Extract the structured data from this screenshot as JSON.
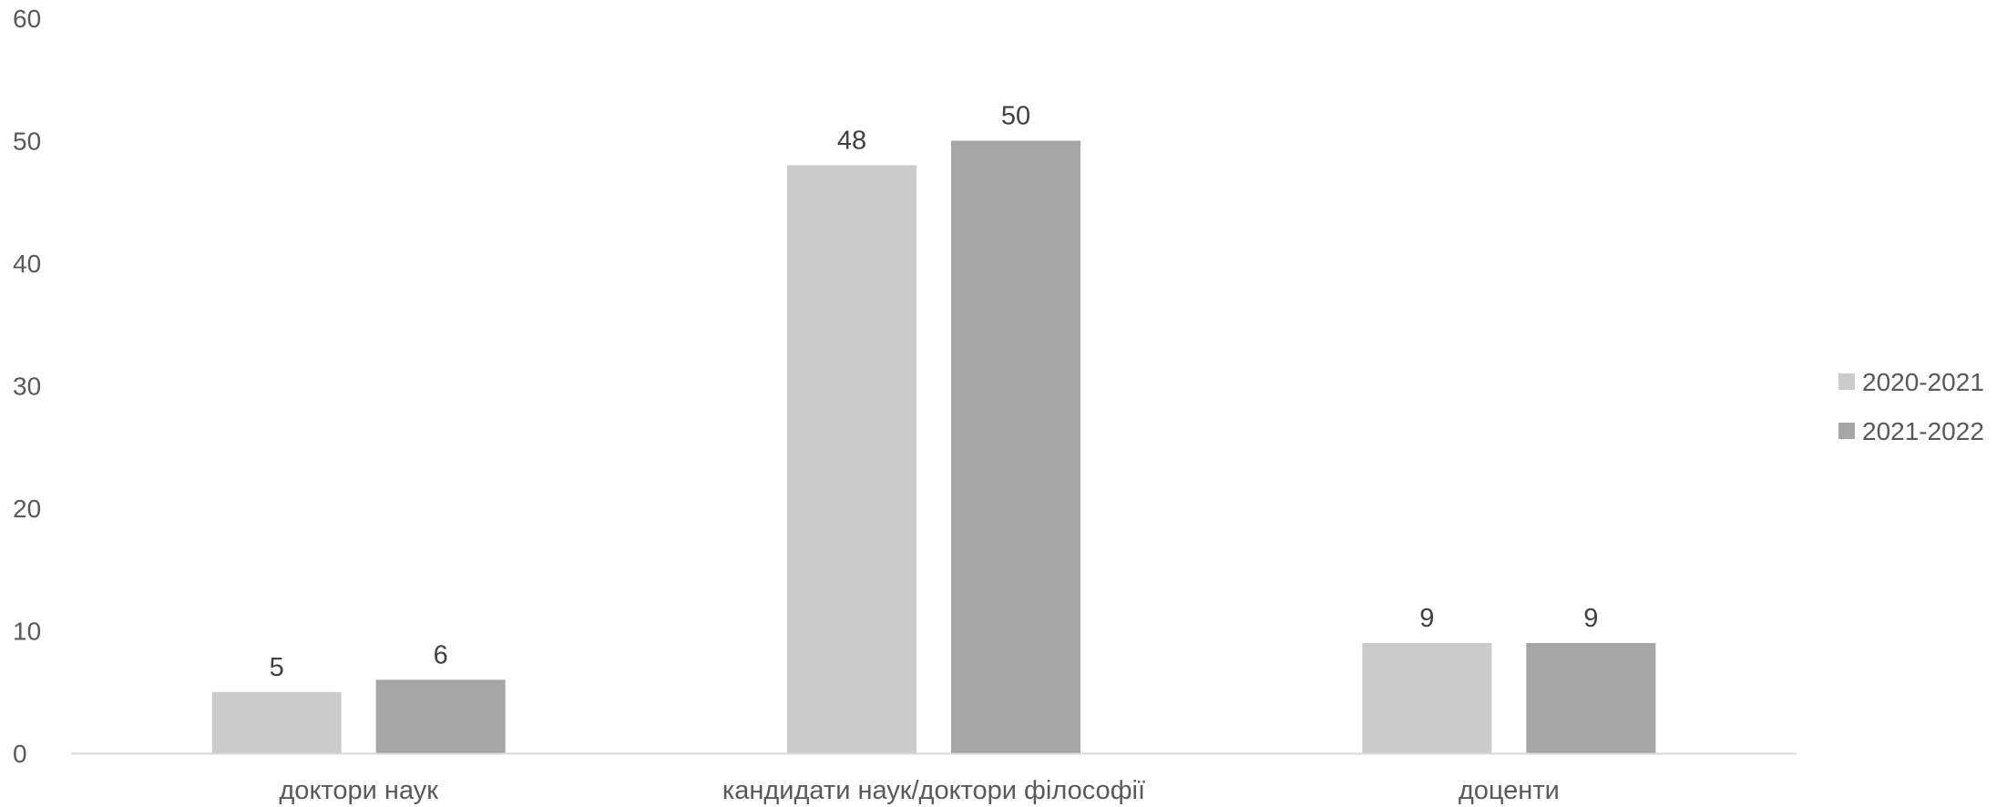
{
  "chart_data": {
    "type": "bar",
    "title": "",
    "xlabel": "",
    "ylabel": "",
    "categories": [
      "доктори наук",
      "кандидати наук/доктори філософії",
      "доценти"
    ],
    "series": [
      {
        "name": "2020-2021",
        "values": [
          5,
          48,
          9
        ],
        "color": "#cbcbcb"
      },
      {
        "name": "2021-2022",
        "values": [
          6,
          50,
          9
        ],
        "color": "#a5a5a5"
      }
    ],
    "ylim": [
      0,
      60
    ],
    "yticks": [
      "0",
      "10",
      "20",
      "30",
      "40",
      "50",
      "60"
    ],
    "grid": false,
    "legend_position": "right",
    "data_labels": true,
    "axis_color": "#d9d9d9",
    "text_color": "#595959"
  }
}
